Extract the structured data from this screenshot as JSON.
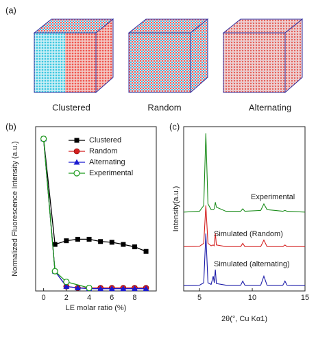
{
  "panel_labels": [
    "(a)",
    "(b)",
    "(c)"
  ],
  "cubes": {
    "labels": [
      "Clustered",
      "Random",
      "Alternating"
    ]
  },
  "chart_data": [
    {
      "type": "line",
      "x_label": "LE molar ratio (%)",
      "y_label": "Normalized Fluorescence Intensity (a.u.)",
      "x": [
        0,
        1,
        2,
        3,
        4,
        5,
        6,
        7,
        8,
        9
      ],
      "xlim": [
        -0.7,
        9.9
      ],
      "ylim": [
        0,
        1.08
      ],
      "xticks": [
        0,
        2,
        4,
        6,
        8
      ],
      "legend": "upper right",
      "series": [
        {
          "name": "Clustered",
          "color": "#000000",
          "marker": "square",
          "values": [
            1.0,
            0.306,
            0.33,
            0.34,
            0.34,
            0.325,
            0.32,
            0.306,
            0.29,
            0.26
          ]
        },
        {
          "name": "Random",
          "color": "#d42020",
          "marker": "circle",
          "values": [
            1.0,
            0.13,
            0.03,
            0.02,
            0.02,
            0.02,
            0.02,
            0.02,
            0.02,
            0.02
          ]
        },
        {
          "name": "Alternating",
          "color": "#1a1ad0",
          "marker": "triangle",
          "values": [
            1.0,
            0.13,
            0.03,
            0.02,
            0.015,
            0.015,
            0.015,
            0.015,
            0.015,
            0.015
          ]
        },
        {
          "name": "Experimental",
          "color": "#1a9a1a",
          "marker": "open-circle",
          "x": [
            0,
            1,
            2,
            4
          ],
          "values": [
            1.0,
            0.13,
            0.06,
            0.02
          ]
        }
      ]
    },
    {
      "type": "line",
      "x_label": "2θ(°, Cu Kα1)",
      "y_label": "Intensity(a.u.)",
      "x": [
        3.5,
        5.0,
        5.4,
        5.6,
        5.8,
        6.1,
        6.3,
        6.4,
        6.5,
        6.6,
        7.5,
        8.9,
        9.1,
        9.3,
        10.8,
        11.1,
        11.4,
        12.9,
        13.1,
        13.3,
        15
      ],
      "xlim": [
        3.5,
        15
      ],
      "ylim": [
        0,
        10
      ],
      "xticks": [
        5,
        10,
        15
      ],
      "series": [
        {
          "name": "Experimental",
          "color": "#1a8c1a",
          "values": [
            4.8,
            4.85,
            5.2,
            9.6,
            5.3,
            4.95,
            4.95,
            5.0,
            5.4,
            5.1,
            4.85,
            4.85,
            5.0,
            4.85,
            4.9,
            5.3,
            4.95,
            4.85,
            4.9,
            4.85,
            4.8
          ]
        },
        {
          "name": "Simulated (Random)",
          "color": "#d42020",
          "values": [
            2.7,
            2.72,
            2.9,
            5.2,
            2.9,
            2.75,
            2.8,
            2.75,
            3.5,
            2.8,
            2.7,
            2.7,
            2.9,
            2.7,
            2.7,
            3.1,
            2.7,
            2.7,
            2.8,
            2.7,
            2.7
          ]
        },
        {
          "name": "Simulated (alternating)",
          "color": "#1a1aa8",
          "values": [
            0.33,
            0.35,
            0.5,
            3.5,
            0.5,
            0.4,
            0.9,
            0.5,
            1.3,
            0.45,
            0.35,
            0.35,
            0.6,
            0.35,
            0.35,
            0.9,
            0.35,
            0.35,
            0.6,
            0.35,
            0.33
          ]
        }
      ]
    }
  ]
}
